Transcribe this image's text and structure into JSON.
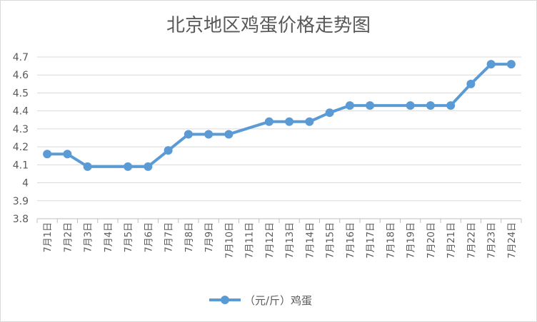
{
  "chart_data": {
    "type": "line",
    "title": "北京地区鸡蛋价格走势图",
    "xlabel": "",
    "ylabel": "",
    "ylim": [
      3.8,
      4.7
    ],
    "yticks": [
      3.8,
      3.9,
      4,
      4.1,
      4.2,
      4.3,
      4.4,
      4.5,
      4.6,
      4.7
    ],
    "grid": "y-major",
    "legend": "bottom",
    "categories": [
      "7月1日",
      "7月2日",
      "7月3日",
      "7月4日",
      "7月5日",
      "7月6日",
      "7月7日",
      "7月8日",
      "7月9日",
      "7月10日",
      "7月11日",
      "7月12日",
      "7月13日",
      "7月14日",
      "7月15日",
      "7月16日",
      "7月17日",
      "7月18日",
      "7月19日",
      "7月20日",
      "7月21日",
      "7月22日",
      "7月23日",
      "7月24日"
    ],
    "series": [
      {
        "name": "（元/斤）鸡蛋",
        "color": "#5b9bd5",
        "values": [
          4.16,
          4.16,
          4.09,
          null,
          4.09,
          4.09,
          4.18,
          4.27,
          4.27,
          4.27,
          null,
          4.34,
          4.34,
          4.34,
          4.39,
          4.43,
          4.43,
          null,
          4.43,
          4.43,
          4.43,
          4.55,
          4.66,
          4.66
        ]
      }
    ]
  }
}
